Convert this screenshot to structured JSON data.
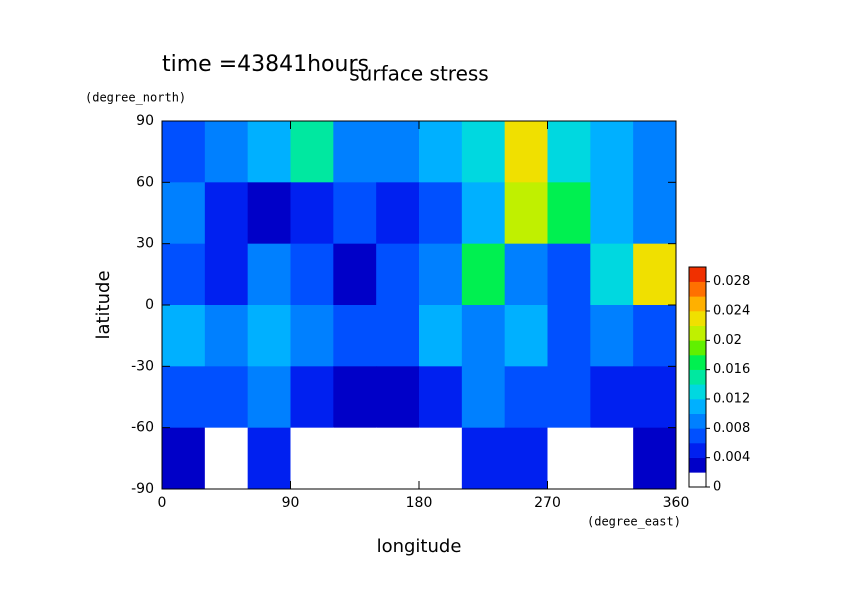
{
  "chart_data": {
    "type": "contour",
    "title": "surface stress",
    "subtitle": "time =43841hours",
    "xlabel": "longitude",
    "xunit": "(degree_east)",
    "ylabel": "latitude",
    "yunit": "(degree_north)",
    "x": [
      15,
      45,
      75,
      105,
      135,
      165,
      195,
      225,
      255,
      285,
      315,
      345
    ],
    "y": [
      75,
      45,
      15,
      -15,
      -45,
      -75
    ],
    "z": [
      [
        0.006,
        0.008,
        0.01,
        0.014,
        0.008,
        0.008,
        0.01,
        0.012,
        0.022,
        0.012,
        0.01,
        0.008
      ],
      [
        0.008,
        0.004,
        0.002,
        0.004,
        0.006,
        0.004,
        0.006,
        0.01,
        0.02,
        0.016,
        0.01,
        0.008
      ],
      [
        0.006,
        0.004,
        0.008,
        0.006,
        0.002,
        0.006,
        0.008,
        0.016,
        0.008,
        0.006,
        0.012,
        0.022
      ],
      [
        0.01,
        0.008,
        0.01,
        0.008,
        0.006,
        0.006,
        0.01,
        0.008,
        0.01,
        0.006,
        0.008,
        0.006
      ],
      [
        0.006,
        0.006,
        0.008,
        0.004,
        0.002,
        0.002,
        0.004,
        0.008,
        0.006,
        0.006,
        0.004,
        0.004
      ],
      [
        0.002,
        0,
        0.004,
        0,
        0,
        0,
        0,
        0.004,
        0.004,
        0,
        0,
        0.002
      ]
    ],
    "xlim": [
      0,
      360
    ],
    "xticks": [
      0,
      90,
      180,
      270,
      360
    ],
    "ylim": [
      -90,
      90
    ],
    "yticks": [
      90,
      60,
      30,
      0,
      -30,
      -60,
      -90
    ],
    "colorbar": {
      "lim": [
        0,
        0.03
      ],
      "ticks": [
        0,
        0.004,
        0.008,
        0.012,
        0.016,
        0.02,
        0.024,
        0.028
      ],
      "colors": [
        "#ffffff",
        "#0000c8",
        "#0020f0",
        "#0050ff",
        "#0080ff",
        "#00b0ff",
        "#00d8e0",
        "#00e8a0",
        "#00f050",
        "#60f000",
        "#c0f000",
        "#f0e000",
        "#ffb000",
        "#ff7000",
        "#f03000"
      ]
    }
  }
}
